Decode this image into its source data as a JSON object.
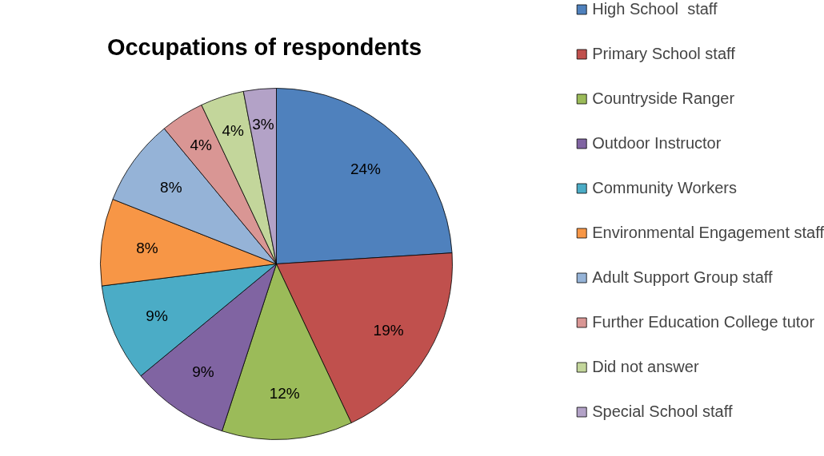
{
  "chart_data": {
    "type": "pie",
    "title": "Occupations of respondents",
    "categories": [
      "High School  staff",
      "Primary School staff",
      "Countryside Ranger",
      "Outdoor Instructor",
      "Community Workers",
      "Environmental Engagement staff",
      "Adult Support Group staff",
      "Further Education College tutor",
      "Did not answer",
      "Special School staff"
    ],
    "values": [
      24,
      19,
      12,
      9,
      9,
      8,
      8,
      4,
      4,
      3
    ],
    "value_labels": [
      "24%",
      "19%",
      "12%",
      "9%",
      "9%",
      "8%",
      "8%",
      "4%",
      "4%",
      "3%"
    ],
    "colors": [
      "#4f81bd",
      "#c0504d",
      "#9bbb59",
      "#8064a2",
      "#4bacc6",
      "#f79646",
      "#95b3d7",
      "#d99694",
      "#c3d69b",
      "#b3a2c7"
    ],
    "legend": "right"
  }
}
